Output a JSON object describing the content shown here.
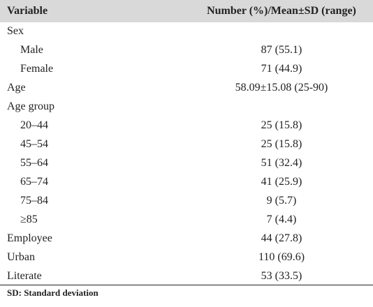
{
  "table": {
    "header": {
      "variable": "Variable",
      "value": "Number (%)/Mean±SD (range)"
    },
    "rows": [
      {
        "label": "Sex",
        "value": "",
        "indent": false
      },
      {
        "label": "Male",
        "value": "87 (55.1)",
        "indent": true
      },
      {
        "label": "Female",
        "value": "71 (44.9)",
        "indent": true
      },
      {
        "label": "Age",
        "value": "58.09±15.08 (25-90)",
        "indent": false
      },
      {
        "label": "Age group",
        "value": "",
        "indent": false
      },
      {
        "label": "20–44",
        "value": "25 (15.8)",
        "indent": true
      },
      {
        "label": "45–54",
        "value": "25 (15.8)",
        "indent": true
      },
      {
        "label": "55–64",
        "value": "51 (32.4)",
        "indent": true
      },
      {
        "label": "65–74",
        "value": "41 (25.9)",
        "indent": true
      },
      {
        "label": "75–84",
        "value": "9 (5.7)",
        "indent": true
      },
      {
        "label": "≥85",
        "value": "7 (4.4)",
        "indent": true
      },
      {
        "label": "Employee",
        "value": "44 (27.8)",
        "indent": false
      },
      {
        "label": "Urban",
        "value": "110 (69.6)",
        "indent": false
      },
      {
        "label": "Literate",
        "value": "53 (33.5)",
        "indent": false
      }
    ],
    "footnote": "SD: Standard deviation"
  }
}
